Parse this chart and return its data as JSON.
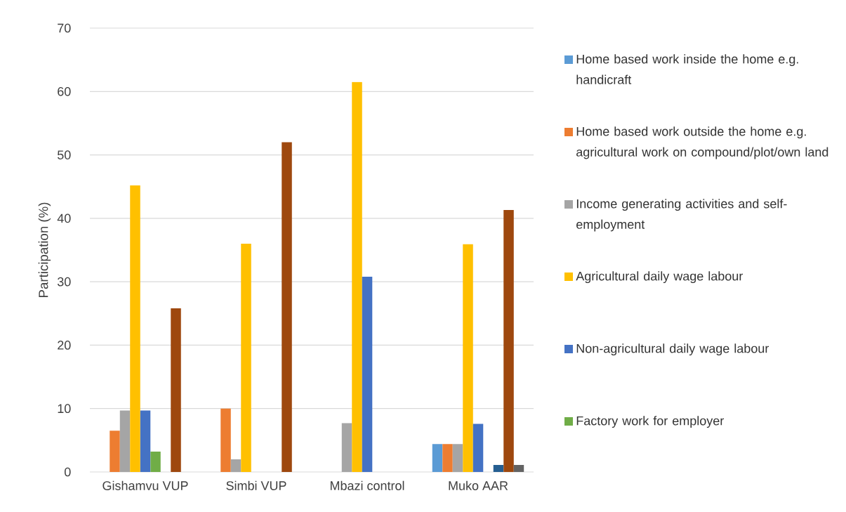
{
  "chart_data": {
    "type": "bar",
    "ylabel": "Participation (%)",
    "categories": [
      "Gishamvu VUP",
      "Simbi VUP",
      "Mbazi control",
      "Muko AAR"
    ],
    "series": [
      {
        "name": "Home based work inside the home e.g. handicraft",
        "color": "#5b9bd5",
        "values": [
          0,
          0,
          0,
          4.4
        ]
      },
      {
        "name": "Home based work outside the home e.g. agricultural work on compound/plot/own land",
        "color": "#ed7d31",
        "values": [
          6.5,
          10,
          0,
          4.4
        ]
      },
      {
        "name": "Income generating activities and self-employment",
        "color": "#a5a5a5",
        "values": [
          9.7,
          2,
          7.7,
          4.4
        ]
      },
      {
        "name": "Agricultural daily wage labour",
        "color": "#ffc000",
        "values": [
          45.2,
          36,
          61.5,
          35.9
        ]
      },
      {
        "name": "Non-agricultural daily wage labour",
        "color": "#4472c4",
        "values": [
          9.7,
          0,
          30.8,
          7.6
        ]
      },
      {
        "name": "Factory work for employer",
        "color": "#70ad47",
        "values": [
          3.2,
          0,
          0,
          0
        ]
      },
      {
        "color": "#255e91",
        "values": [
          0,
          0,
          0,
          1.1
        ]
      },
      {
        "color": "#9e480e",
        "values": [
          25.8,
          52,
          0,
          41.3
        ]
      },
      {
        "color": "#636363",
        "values": [
          0,
          0,
          0,
          1.1
        ]
      }
    ],
    "ylim": [
      0,
      70
    ],
    "yticks": [
      0,
      10,
      20,
      30,
      40,
      50,
      60,
      70
    ],
    "grid": "y",
    "legend": "right"
  }
}
